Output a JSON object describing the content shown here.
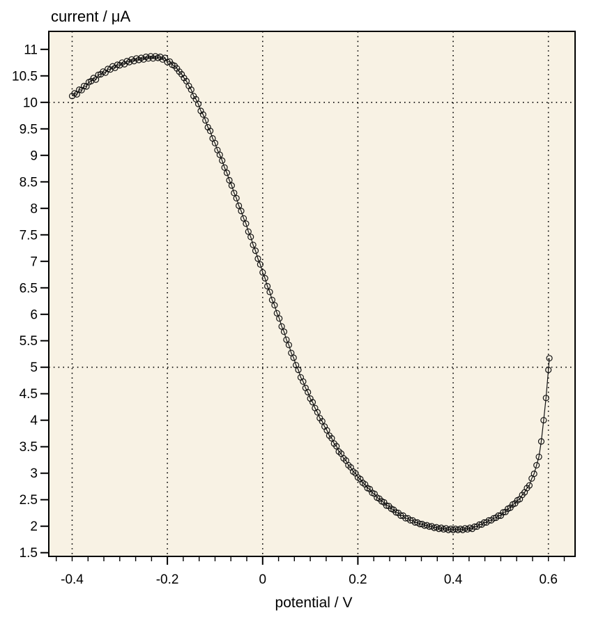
{
  "chart_data": {
    "type": "scatter",
    "title": "current / μA",
    "xlabel": "potential / V",
    "ylabel": "current / μA",
    "xlim": [
      -0.449,
      0.656
    ],
    "ylim": [
      1.43,
      11.34
    ],
    "grid": "dotted",
    "grid_x": [
      -0.4,
      -0.2,
      0,
      0.2,
      0.4,
      0.6
    ],
    "grid_y": [
      5,
      10
    ],
    "x_major_ticks": [
      -0.4,
      -0.2,
      0,
      0.2,
      0.4,
      0.6
    ],
    "x_tick_labels": [
      "-0.4",
      "-0.2",
      "0",
      "0.2",
      "0.4",
      "0.6"
    ],
    "x_minor_step": 0.0333333,
    "y_ticks": [
      1.5,
      2,
      2.5,
      3,
      3.5,
      4,
      4.5,
      5,
      5.5,
      6,
      6.5,
      7,
      7.5,
      8,
      8.5,
      9,
      9.5,
      10,
      10.5,
      11
    ],
    "y_tick_labels": [
      "1.5",
      "2",
      "2.5",
      "3",
      "3.5",
      "4",
      "4.5",
      "5",
      "5.5",
      "6",
      "6.5",
      "7",
      "7.5",
      "8",
      "8.5",
      "9",
      "9.5",
      "10",
      "10.5",
      "11"
    ],
    "panel_background": "#f8f2e4",
    "outer_background": "#ffffff",
    "line_color": "#111111",
    "marker": "open-circle",
    "legend": "none",
    "series": [
      {
        "name": "current",
        "x": [
          -0.4,
          -0.395,
          -0.39,
          -0.385,
          -0.38,
          -0.375,
          -0.37,
          -0.365,
          -0.36,
          -0.355,
          -0.35,
          -0.345,
          -0.34,
          -0.335,
          -0.33,
          -0.325,
          -0.32,
          -0.315,
          -0.31,
          -0.305,
          -0.3,
          -0.295,
          -0.29,
          -0.285,
          -0.28,
          -0.275,
          -0.27,
          -0.265,
          -0.26,
          -0.255,
          -0.25,
          -0.245,
          -0.24,
          -0.235,
          -0.23,
          -0.225,
          -0.22,
          -0.215,
          -0.21,
          -0.205,
          -0.2,
          -0.195,
          -0.19,
          -0.185,
          -0.18,
          -0.175,
          -0.17,
          -0.165,
          -0.16,
          -0.155,
          -0.15,
          -0.145,
          -0.14,
          -0.135,
          -0.13,
          -0.125,
          -0.12,
          -0.115,
          -0.11,
          -0.105,
          -0.1,
          -0.095,
          -0.09,
          -0.085,
          -0.08,
          -0.075,
          -0.07,
          -0.065,
          -0.06,
          -0.055,
          -0.05,
          -0.045,
          -0.04,
          -0.035,
          -0.03,
          -0.025,
          -0.02,
          -0.015,
          -0.01,
          -0.005,
          0,
          0.005,
          0.01,
          0.015,
          0.02,
          0.025,
          0.03,
          0.035,
          0.04,
          0.045,
          0.05,
          0.055,
          0.06,
          0.065,
          0.07,
          0.075,
          0.08,
          0.085,
          0.09,
          0.095,
          0.1,
          0.105,
          0.11,
          0.115,
          0.12,
          0.125,
          0.13,
          0.135,
          0.14,
          0.145,
          0.15,
          0.155,
          0.16,
          0.165,
          0.17,
          0.175,
          0.18,
          0.185,
          0.19,
          0.195,
          0.2,
          0.205,
          0.21,
          0.215,
          0.22,
          0.225,
          0.23,
          0.235,
          0.24,
          0.245,
          0.25,
          0.255,
          0.26,
          0.265,
          0.27,
          0.275,
          0.28,
          0.285,
          0.29,
          0.295,
          0.3,
          0.305,
          0.31,
          0.315,
          0.32,
          0.325,
          0.33,
          0.335,
          0.34,
          0.345,
          0.35,
          0.355,
          0.36,
          0.365,
          0.37,
          0.375,
          0.38,
          0.385,
          0.39,
          0.395,
          0.4,
          0.405,
          0.41,
          0.415,
          0.42,
          0.425,
          0.43,
          0.435,
          0.44,
          0.445,
          0.45,
          0.455,
          0.46,
          0.465,
          0.47,
          0.475,
          0.48,
          0.485,
          0.49,
          0.495,
          0.5,
          0.505,
          0.51,
          0.515,
          0.52,
          0.525,
          0.53,
          0.535,
          0.54,
          0.545,
          0.55,
          0.555,
          0.56,
          0.565,
          0.57,
          0.575,
          0.58,
          0.585,
          0.59,
          0.595,
          0.6,
          0.602
        ],
        "y": [
          10.12,
          10.17,
          10.15,
          10.24,
          10.23,
          10.31,
          10.3,
          10.38,
          10.4,
          10.46,
          10.43,
          10.52,
          10.53,
          10.58,
          10.56,
          10.63,
          10.62,
          10.68,
          10.65,
          10.71,
          10.7,
          10.75,
          10.72,
          10.78,
          10.76,
          10.81,
          10.78,
          10.83,
          10.8,
          10.84,
          10.81,
          10.86,
          10.83,
          10.87,
          10.83,
          10.87,
          10.84,
          10.86,
          10.81,
          10.84,
          10.76,
          10.77,
          10.71,
          10.69,
          10.64,
          10.58,
          10.53,
          10.46,
          10.4,
          10.31,
          10.24,
          10.12,
          10.06,
          9.97,
          9.84,
          9.77,
          9.66,
          9.53,
          9.46,
          9.32,
          9.23,
          9.1,
          9.01,
          8.9,
          8.77,
          8.67,
          8.53,
          8.43,
          8.29,
          8.19,
          8.05,
          7.95,
          7.81,
          7.71,
          7.56,
          7.46,
          7.31,
          7.2,
          7.05,
          6.94,
          6.79,
          6.68,
          6.53,
          6.42,
          6.27,
          6.17,
          6.02,
          5.92,
          5.77,
          5.67,
          5.52,
          5.42,
          5.27,
          5.18,
          5.04,
          4.95,
          4.81,
          4.73,
          4.61,
          4.53,
          4.41,
          4.34,
          4.23,
          4.15,
          4.04,
          3.98,
          3.88,
          3.81,
          3.71,
          3.66,
          3.56,
          3.51,
          3.41,
          3.37,
          3.28,
          3.24,
          3.15,
          3.11,
          3.03,
          3.0,
          2.92,
          2.89,
          2.82,
          2.79,
          2.72,
          2.7,
          2.63,
          2.61,
          2.54,
          2.52,
          2.47,
          2.45,
          2.39,
          2.38,
          2.33,
          2.31,
          2.26,
          2.25,
          2.2,
          2.2,
          2.15,
          2.15,
          2.11,
          2.11,
          2.07,
          2.07,
          2.04,
          2.04,
          2.01,
          2.02,
          1.99,
          2.0,
          1.97,
          1.98,
          1.95,
          1.97,
          1.94,
          1.96,
          1.93,
          1.95,
          1.93,
          1.95,
          1.93,
          1.95,
          1.93,
          1.96,
          1.94,
          1.97,
          1.95,
          1.99,
          1.99,
          2.03,
          2.03,
          2.07,
          2.07,
          2.11,
          2.11,
          2.15,
          2.16,
          2.2,
          2.2,
          2.26,
          2.27,
          2.33,
          2.35,
          2.41,
          2.43,
          2.49,
          2.51,
          2.59,
          2.64,
          2.72,
          2.77,
          2.9,
          2.99,
          3.15,
          3.31,
          3.6,
          4.0,
          4.42,
          4.95,
          5.17
        ]
      }
    ]
  }
}
